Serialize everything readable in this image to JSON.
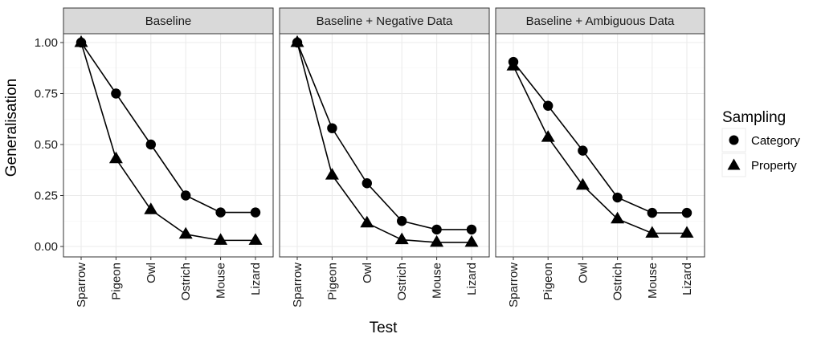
{
  "chart_data": {
    "type": "line",
    "facets": [
      "Baseline",
      "Baseline + Negative Data",
      "Baseline + Ambiguous Data"
    ],
    "categories": [
      "Sparrow",
      "Pigeon",
      "Owl",
      "Ostrich",
      "Mouse",
      "Lizard"
    ],
    "xlabel": "Test",
    "ylabel": "Generalisation",
    "ylim": [
      0,
      1
    ],
    "yticks": [
      0.0,
      0.25,
      0.5,
      0.75,
      1.0
    ],
    "ytick_labels": [
      "0.00",
      "0.25",
      "0.50",
      "0.75",
      "1.00"
    ],
    "legend": {
      "title": "Sampling",
      "position": "right",
      "entries": [
        {
          "label": "Category",
          "marker": "circle"
        },
        {
          "label": "Property",
          "marker": "triangle"
        }
      ]
    },
    "series": [
      {
        "facet": "Baseline",
        "name": "Category",
        "marker": "circle",
        "values": [
          1.0,
          0.75,
          0.5,
          0.25,
          0.167,
          0.167
        ]
      },
      {
        "facet": "Baseline",
        "name": "Property",
        "marker": "triangle",
        "values": [
          1.0,
          0.43,
          0.18,
          0.06,
          0.03,
          0.03
        ]
      },
      {
        "facet": "Baseline + Negative Data",
        "name": "Category",
        "marker": "circle",
        "values": [
          1.0,
          0.58,
          0.31,
          0.125,
          0.083,
          0.083
        ]
      },
      {
        "facet": "Baseline + Negative Data",
        "name": "Property",
        "marker": "triangle",
        "values": [
          1.0,
          0.35,
          0.115,
          0.033,
          0.02,
          0.02
        ]
      },
      {
        "facet": "Baseline + Ambiguous Data",
        "name": "Category",
        "marker": "circle",
        "values": [
          0.905,
          0.69,
          0.47,
          0.24,
          0.165,
          0.165
        ]
      },
      {
        "facet": "Baseline + Ambiguous Data",
        "name": "Property",
        "marker": "triangle",
        "values": [
          0.885,
          0.535,
          0.3,
          0.135,
          0.065,
          0.065
        ]
      }
    ],
    "grid": true,
    "colors": {
      "mark": "#000000",
      "strip_bg": "#d9d9d9",
      "grid": "#ebebeb"
    }
  }
}
